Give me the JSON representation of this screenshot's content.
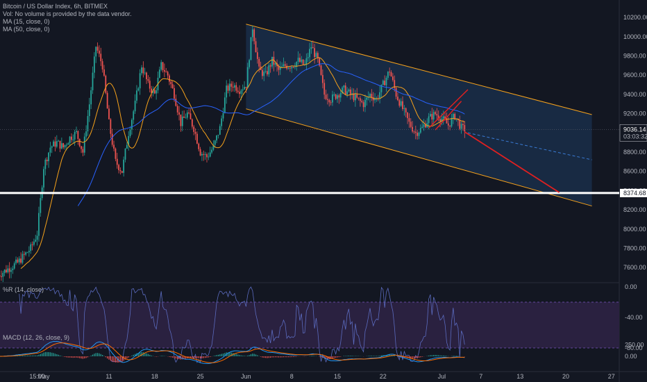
{
  "legend": {
    "title": "Bitcoin / US Dollar Index, 6h, BITMEX",
    "volume": "Vol: No volume is provided by the data vendor.",
    "ma15": "MA (15, close, 0)",
    "ma50": "MA (50, close, 0)",
    "wr": "%R (14, close)",
    "macd": "MACD (12, 26, close, 9)"
  },
  "price_axis": {
    "ticks": [
      "10200.00",
      "10000.00",
      "9800.00",
      "9600.00",
      "9400.00",
      "9200.00",
      "9000.00",
      "8800.00",
      "8600.00",
      "8400.00",
      "8200.00",
      "8000.00",
      "7800.00",
      "7600.00"
    ],
    "tick_values": [
      10200,
      10000,
      9800,
      9600,
      9400,
      9200,
      9000,
      8800,
      8600,
      8400,
      8200,
      8000,
      7800,
      7600
    ],
    "current_price": "9036.14",
    "current_price_value": 9036.14,
    "countdown": "03:03:32",
    "support_label": "8374.68",
    "support_value": 8374.68
  },
  "wr_axis": {
    "ticks": [
      "0.00",
      "-40.00",
      "-80.00"
    ],
    "tick_values": [
      0,
      -40,
      -80
    ]
  },
  "macd_axis": {
    "ticks": [
      "250.00",
      "0.00"
    ],
    "tick_values": [
      250,
      0
    ]
  },
  "time_axis": {
    "ticks": [
      "15:00",
      "May",
      "11",
      "18",
      "25",
      "Jun",
      "8",
      "15",
      "22",
      "Jul",
      "7",
      "13",
      "20",
      "27"
    ],
    "tick_days": [
      -1,
      0,
      10,
      17,
      24,
      31,
      38,
      45,
      52,
      61,
      67,
      73,
      80,
      87
    ]
  },
  "colors": {
    "background": "#131722",
    "up": "#26a69a",
    "down": "#ef5350",
    "ma15": "#f7a21b",
    "ma50": "#2962ff",
    "channel": "#f7a21b",
    "channel_fill": "#1e3a5f",
    "support": "#ffffff",
    "projection": "#e02020",
    "wr_line": "#5b6bbf",
    "wr_band": "#2a2140"
  },
  "chart_data": {
    "type": "candlestick",
    "title": "Bitcoin / US Dollar Index, 6h, BITMEX",
    "x_unit": "days since May 1",
    "close_key_points": [
      {
        "x": -7,
        "y": 7520
      },
      {
        "x": -4,
        "y": 7650
      },
      {
        "x": -2,
        "y": 7800
      },
      {
        "x": -1,
        "y": 7950
      },
      {
        "x": 0,
        "y": 8650
      },
      {
        "x": 1,
        "y": 8850
      },
      {
        "x": 2,
        "y": 8900
      },
      {
        "x": 3,
        "y": 8850
      },
      {
        "x": 4,
        "y": 8950
      },
      {
        "x": 5,
        "y": 9000
      },
      {
        "x": 6,
        "y": 8800
      },
      {
        "x": 7,
        "y": 9300
      },
      {
        "x": 8,
        "y": 9900
      },
      {
        "x": 9,
        "y": 9700
      },
      {
        "x": 10,
        "y": 9100
      },
      {
        "x": 11,
        "y": 8700
      },
      {
        "x": 12,
        "y": 8600
      },
      {
        "x": 13,
        "y": 9000
      },
      {
        "x": 14,
        "y": 9300
      },
      {
        "x": 15,
        "y": 9700
      },
      {
        "x": 16,
        "y": 9500
      },
      {
        "x": 17,
        "y": 9400
      },
      {
        "x": 18,
        "y": 9700
      },
      {
        "x": 19,
        "y": 9600
      },
      {
        "x": 20,
        "y": 9400
      },
      {
        "x": 21,
        "y": 9100
      },
      {
        "x": 22,
        "y": 9200
      },
      {
        "x": 23,
        "y": 9050
      },
      {
        "x": 24,
        "y": 8800
      },
      {
        "x": 25,
        "y": 8750
      },
      {
        "x": 26,
        "y": 8850
      },
      {
        "x": 27,
        "y": 9050
      },
      {
        "x": 28,
        "y": 9450
      },
      {
        "x": 29,
        "y": 9500
      },
      {
        "x": 30,
        "y": 9450
      },
      {
        "x": 31,
        "y": 9500
      },
      {
        "x": 32,
        "y": 10100
      },
      {
        "x": 33,
        "y": 9650
      },
      {
        "x": 34,
        "y": 9600
      },
      {
        "x": 35,
        "y": 9750
      },
      {
        "x": 36,
        "y": 9650
      },
      {
        "x": 37,
        "y": 9700
      },
      {
        "x": 38,
        "y": 9700
      },
      {
        "x": 39,
        "y": 9750
      },
      {
        "x": 40,
        "y": 9700
      },
      {
        "x": 41,
        "y": 9900
      },
      {
        "x": 42,
        "y": 9750
      },
      {
        "x": 43,
        "y": 9400
      },
      {
        "x": 44,
        "y": 9350
      },
      {
        "x": 45,
        "y": 9400
      },
      {
        "x": 46,
        "y": 9450
      },
      {
        "x": 47,
        "y": 9400
      },
      {
        "x": 48,
        "y": 9350
      },
      {
        "x": 49,
        "y": 9300
      },
      {
        "x": 50,
        "y": 9400
      },
      {
        "x": 51,
        "y": 9350
      },
      {
        "x": 52,
        "y": 9500
      },
      {
        "x": 53,
        "y": 9650
      },
      {
        "x": 54,
        "y": 9400
      },
      {
        "x": 55,
        "y": 9250
      },
      {
        "x": 56,
        "y": 9100
      },
      {
        "x": 57,
        "y": 9000
      },
      {
        "x": 58,
        "y": 9050
      },
      {
        "x": 59,
        "y": 9150
      },
      {
        "x": 60,
        "y": 9200
      },
      {
        "x": 61,
        "y": 9150
      },
      {
        "x": 62,
        "y": 9080
      },
      {
        "x": 63,
        "y": 9180
      },
      {
        "x": 64,
        "y": 9050
      },
      {
        "x": 64.6,
        "y": 9036
      }
    ],
    "channel": {
      "upper": [
        {
          "x": 31,
          "y": 10130
        },
        {
          "x": 84,
          "y": 9190
        }
      ],
      "lower": [
        {
          "x": 31,
          "y": 9250
        },
        {
          "x": 84,
          "y": 8240
        }
      ]
    },
    "channel_midline_projection": [
      {
        "x": 65,
        "y": 9000
      },
      {
        "x": 84,
        "y": 8720
      }
    ],
    "projection_arrow": [
      {
        "x": 64.5,
        "y": 9010
      },
      {
        "x": 79,
        "y": 8380
      }
    ],
    "rising_wedge": {
      "upper": [
        {
          "x": 59,
          "y": 9050
        },
        {
          "x": 65,
          "y": 9450
        }
      ],
      "lower": [
        {
          "x": 60,
          "y": 9030
        },
        {
          "x": 64,
          "y": 9330
        }
      ]
    },
    "support_level": 8374.68,
    "wr_band": [
      -20,
      -80
    ],
    "ylim": [
      7480,
      10320
    ],
    "xlim": [
      -7,
      89
    ]
  }
}
